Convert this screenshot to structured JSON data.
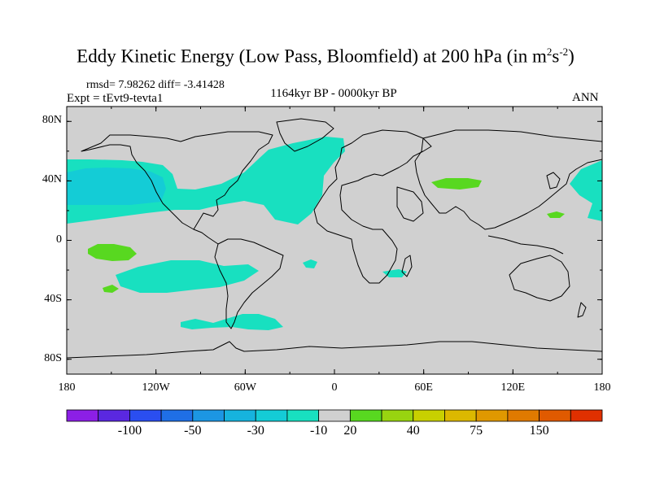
{
  "title": {
    "main": "Eddy Kinetic Energy (Low Pass, Bloomfield) at 200 hPa (in m",
    "sup1": "2",
    "mid": "s",
    "sup2": "-2",
    "close": ")"
  },
  "stats": "rmsd= 7.98262 diff= -3.41428",
  "expt": "Expt = tEvt9-tevta1",
  "period": "1164kyr BP - 0000kyr BP",
  "season": "ANN",
  "map": {
    "land_color": "#d0d0d0",
    "lat_ticks": [
      {
        "value": 80,
        "label": "80N"
      },
      {
        "value": 40,
        "label": "40N"
      },
      {
        "value": 0,
        "label": "0"
      },
      {
        "value": -40,
        "label": "40S"
      },
      {
        "value": -80,
        "label": "80S"
      }
    ],
    "lon_ticks": [
      {
        "value": -180,
        "label": "180"
      },
      {
        "value": -120,
        "label": "120W"
      },
      {
        "value": -60,
        "label": "60W"
      },
      {
        "value": 0,
        "label": "0"
      },
      {
        "value": 60,
        "label": "60E"
      },
      {
        "value": 120,
        "label": "120E"
      },
      {
        "value": 180,
        "label": "180"
      }
    ]
  },
  "colorbar": {
    "colors": [
      "#8c1fe6",
      "#5a28e0",
      "#2a4ef0",
      "#1f6fe6",
      "#1c96e3",
      "#16b3de",
      "#14ccd6",
      "#18e0c0",
      "#d0d0d0",
      "#58d820",
      "#98d410",
      "#c8d000",
      "#dcb800",
      "#e09800",
      "#e07a00",
      "#e05a00",
      "#e03000"
    ],
    "labels": [
      {
        "after_box": 2,
        "text": "-100"
      },
      {
        "after_box": 4,
        "text": "-50"
      },
      {
        "after_box": 6,
        "text": "-30"
      },
      {
        "after_box": 8,
        "text": "-10"
      },
      {
        "after_box": 9,
        "text": "20"
      },
      {
        "after_box": 11,
        "text": "40"
      },
      {
        "after_box": 13,
        "text": "75"
      },
      {
        "after_box": 15,
        "text": "150"
      }
    ]
  }
}
